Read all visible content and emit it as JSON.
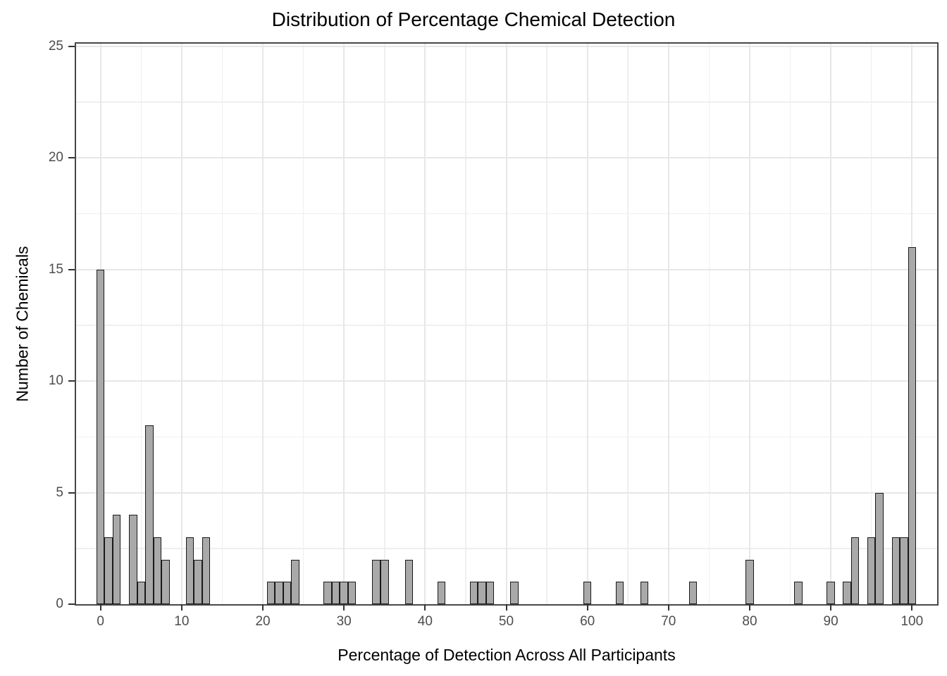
{
  "title": "Distribution of Percentage Chemical Detection",
  "chart_data": {
    "type": "bar",
    "subtype": "histogram",
    "title": "Distribution of Percentage Chemical Detection",
    "xlabel": "Percentage of Detection Across All Participants",
    "ylabel": "Number of Chemicals",
    "binwidth": 1,
    "bins": [
      {
        "x": 0,
        "n": 15
      },
      {
        "x": 1,
        "n": 3
      },
      {
        "x": 2,
        "n": 4
      },
      {
        "x": 4,
        "n": 4
      },
      {
        "x": 5,
        "n": 1
      },
      {
        "x": 6,
        "n": 8
      },
      {
        "x": 7,
        "n": 3
      },
      {
        "x": 8,
        "n": 2
      },
      {
        "x": 11,
        "n": 3
      },
      {
        "x": 12,
        "n": 2
      },
      {
        "x": 13,
        "n": 3
      },
      {
        "x": 21,
        "n": 1
      },
      {
        "x": 22,
        "n": 1
      },
      {
        "x": 23,
        "n": 1
      },
      {
        "x": 24,
        "n": 2
      },
      {
        "x": 28,
        "n": 1
      },
      {
        "x": 29,
        "n": 1
      },
      {
        "x": 30,
        "n": 1
      },
      {
        "x": 31,
        "n": 1
      },
      {
        "x": 34,
        "n": 2
      },
      {
        "x": 35,
        "n": 2
      },
      {
        "x": 38,
        "n": 2
      },
      {
        "x": 42,
        "n": 1
      },
      {
        "x": 46,
        "n": 1
      },
      {
        "x": 47,
        "n": 1
      },
      {
        "x": 48,
        "n": 1
      },
      {
        "x": 51,
        "n": 1
      },
      {
        "x": 60,
        "n": 1
      },
      {
        "x": 64,
        "n": 1
      },
      {
        "x": 67,
        "n": 1
      },
      {
        "x": 73,
        "n": 1
      },
      {
        "x": 80,
        "n": 2
      },
      {
        "x": 86,
        "n": 1
      },
      {
        "x": 90,
        "n": 1
      },
      {
        "x": 92,
        "n": 1
      },
      {
        "x": 93,
        "n": 3
      },
      {
        "x": 95,
        "n": 3
      },
      {
        "x": 96,
        "n": 5
      },
      {
        "x": 98,
        "n": 3
      },
      {
        "x": 99,
        "n": 3
      },
      {
        "x": 100,
        "n": 16
      }
    ],
    "x_ticks": [
      0,
      10,
      20,
      30,
      40,
      50,
      60,
      70,
      80,
      90,
      100
    ],
    "y_ticks": [
      0,
      5,
      10,
      15,
      20,
      25
    ],
    "x_minor_ticks": [
      5,
      15,
      25,
      35,
      45,
      55,
      65,
      75,
      85,
      95
    ],
    "y_minor_ticks": [
      2.5,
      7.5,
      12.5,
      17.5,
      22.5
    ],
    "xlim": [
      -3,
      103.1
    ],
    "ylim": [
      0,
      25.1
    ],
    "grid": true,
    "legend": "none",
    "colors": {
      "bar_fill": "#a9a9a9",
      "bar_stroke": "#1a1a1a",
      "grid_major": "#e7e7e7",
      "grid_minor": "#efefef",
      "panel_border": "#474747",
      "tick_label": "#4d4d4d",
      "text": "#000000",
      "background": "#ffffff"
    }
  }
}
